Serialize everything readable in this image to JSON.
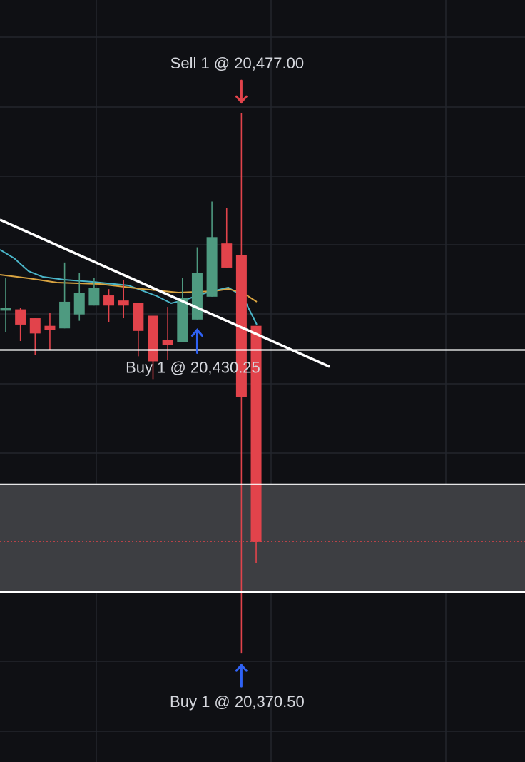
{
  "chart_data": {
    "type": "candlestick",
    "categories": [
      null,
      null,
      null,
      null,
      null,
      null,
      null,
      null,
      null,
      null,
      null,
      null,
      null,
      null,
      null,
      null,
      null,
      null
    ],
    "open": [
      20438,
      20438.25,
      20436.5,
      20435,
      20434.5,
      20437.25,
      20439,
      20441,
      20440,
      20439.5,
      20437,
      20432.25,
      20431.75,
      20436.25,
      20440.75,
      20451.25,
      20449,
      20435
    ],
    "high": [
      20444.5,
      20438.5,
      20436.5,
      20437.5,
      20447.5,
      20445.5,
      20444.5,
      20442.25,
      20444,
      20439.5,
      20437,
      20438.75,
      20444.5,
      20450.5,
      20459.5,
      20458.25,
      20477,
      20435
    ],
    "low": [
      20433.75,
      20432,
      20429.25,
      20430.25,
      20434.5,
      20436,
      20439,
      20435.75,
      20436.5,
      20429,
      20424.5,
      20428.25,
      20431.75,
      20436.25,
      20440.75,
      20446.5,
      20370.5,
      20388.25
    ],
    "close": [
      20438.5,
      20435.25,
      20433.5,
      20434.25,
      20439.75,
      20441.5,
      20442.5,
      20439,
      20439,
      20434,
      20428,
      20431.25,
      20440.5,
      20445.5,
      20452.5,
      20446.5,
      20421,
      20392.5
    ],
    "up_color": "#4e9a80",
    "down_color": "#e2434b",
    "ylim": [
      20349,
      20499.25
    ],
    "grid": true,
    "levels": [
      {
        "value": 20430.25,
        "color": "#ffffff",
        "style": "solid"
      },
      {
        "value": 20403.75,
        "color": "#ffffff",
        "style": "solid"
      },
      {
        "value": 20382.5,
        "color": "#ffffff",
        "style": "solid"
      },
      {
        "value": 20392.5,
        "color": "#e2434b",
        "style": "dotted"
      }
    ],
    "zone": {
      "from": 20382.5,
      "to": 20403.75,
      "color": "#3d3e42"
    },
    "annotations": [
      {
        "text": "Sell 1 @ 20,477.00",
        "value": 20477,
        "index": 16,
        "direction": "down",
        "color": "#e2434b"
      },
      {
        "text": "Buy 1 @ 20,430.25",
        "value": 20430.25,
        "index": 13,
        "direction": "up",
        "color": "#2f62f5"
      },
      {
        "text": "Buy 1 @ 20,370.50",
        "value": 20370.5,
        "index": 16,
        "direction": "up",
        "color": "#2f62f5"
      }
    ]
  }
}
